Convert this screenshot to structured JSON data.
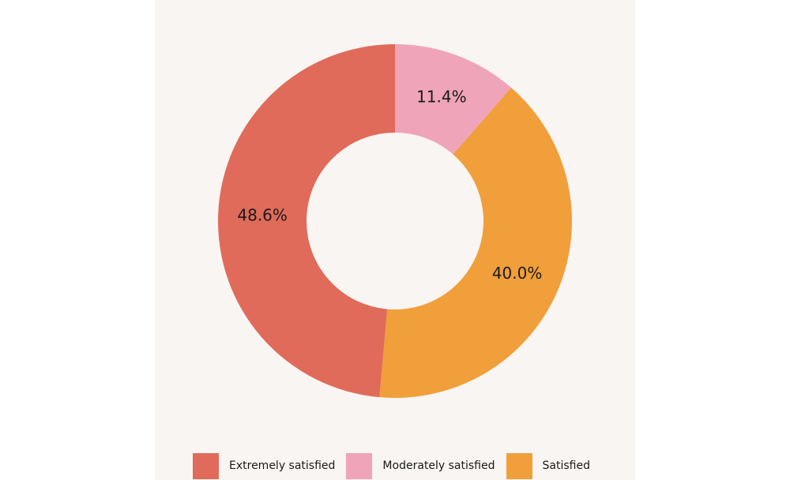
{
  "chart_data": {
    "type": "pie",
    "style": "donut",
    "title": "",
    "categories": [
      "Extremely satisfied",
      "Moderately satisfied",
      "Satisfied"
    ],
    "slices": [
      {
        "name": "Extremely satisfied",
        "label": "48.6%",
        "value": 48.6,
        "color": "#e06b5a"
      },
      {
        "name": "Moderately satisfied",
        "label": "11.4%",
        "value": 11.4,
        "color": "#f0a4b9"
      },
      {
        "name": "Satisfied",
        "label": "40.0%",
        "value": 40.0,
        "color": "#f09f3b"
      }
    ],
    "slice_order_clockwise_from_top": [
      "Moderately satisfied",
      "Satisfied",
      "Extremely satisfied"
    ],
    "legend_position": "bottom",
    "background": "#f8f5f2"
  }
}
